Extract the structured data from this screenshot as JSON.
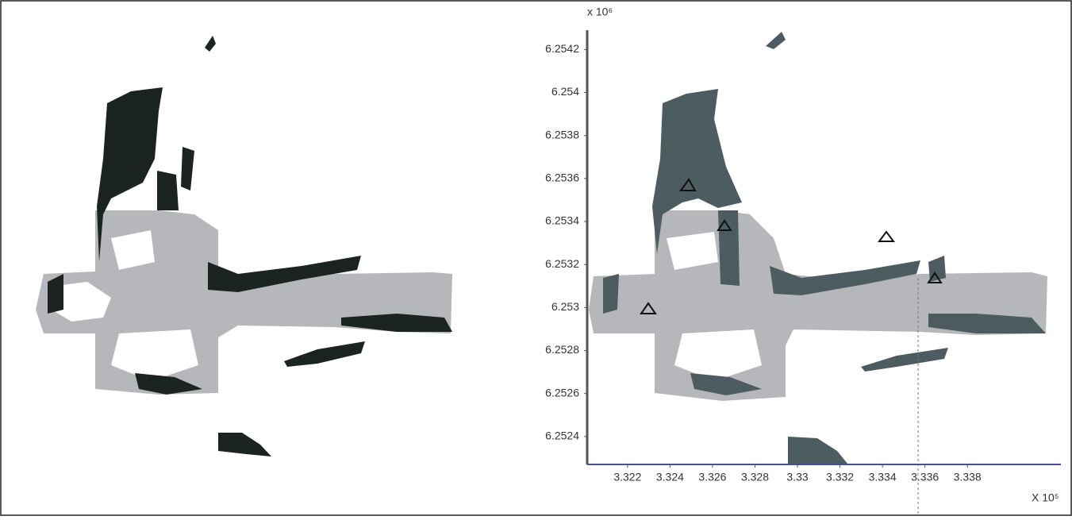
{
  "chart_data": {
    "type": "map",
    "y_label": "x 10⁶",
    "x_label": "X 10⁵",
    "ylim": [
      6.25227,
      6.25429
    ],
    "yticks": [
      6.2542,
      6.254,
      6.2538,
      6.2536,
      6.2534,
      6.2532,
      6.253,
      6.2528,
      6.2526,
      6.2524
    ],
    "xlim": [
      3.3201,
      3.3424
    ],
    "xticks": [
      3.322,
      3.324,
      3.326,
      3.328,
      3.33,
      3.332,
      3.334,
      3.336,
      3.338
    ],
    "axis_color": "#4a4f9a"
  }
}
